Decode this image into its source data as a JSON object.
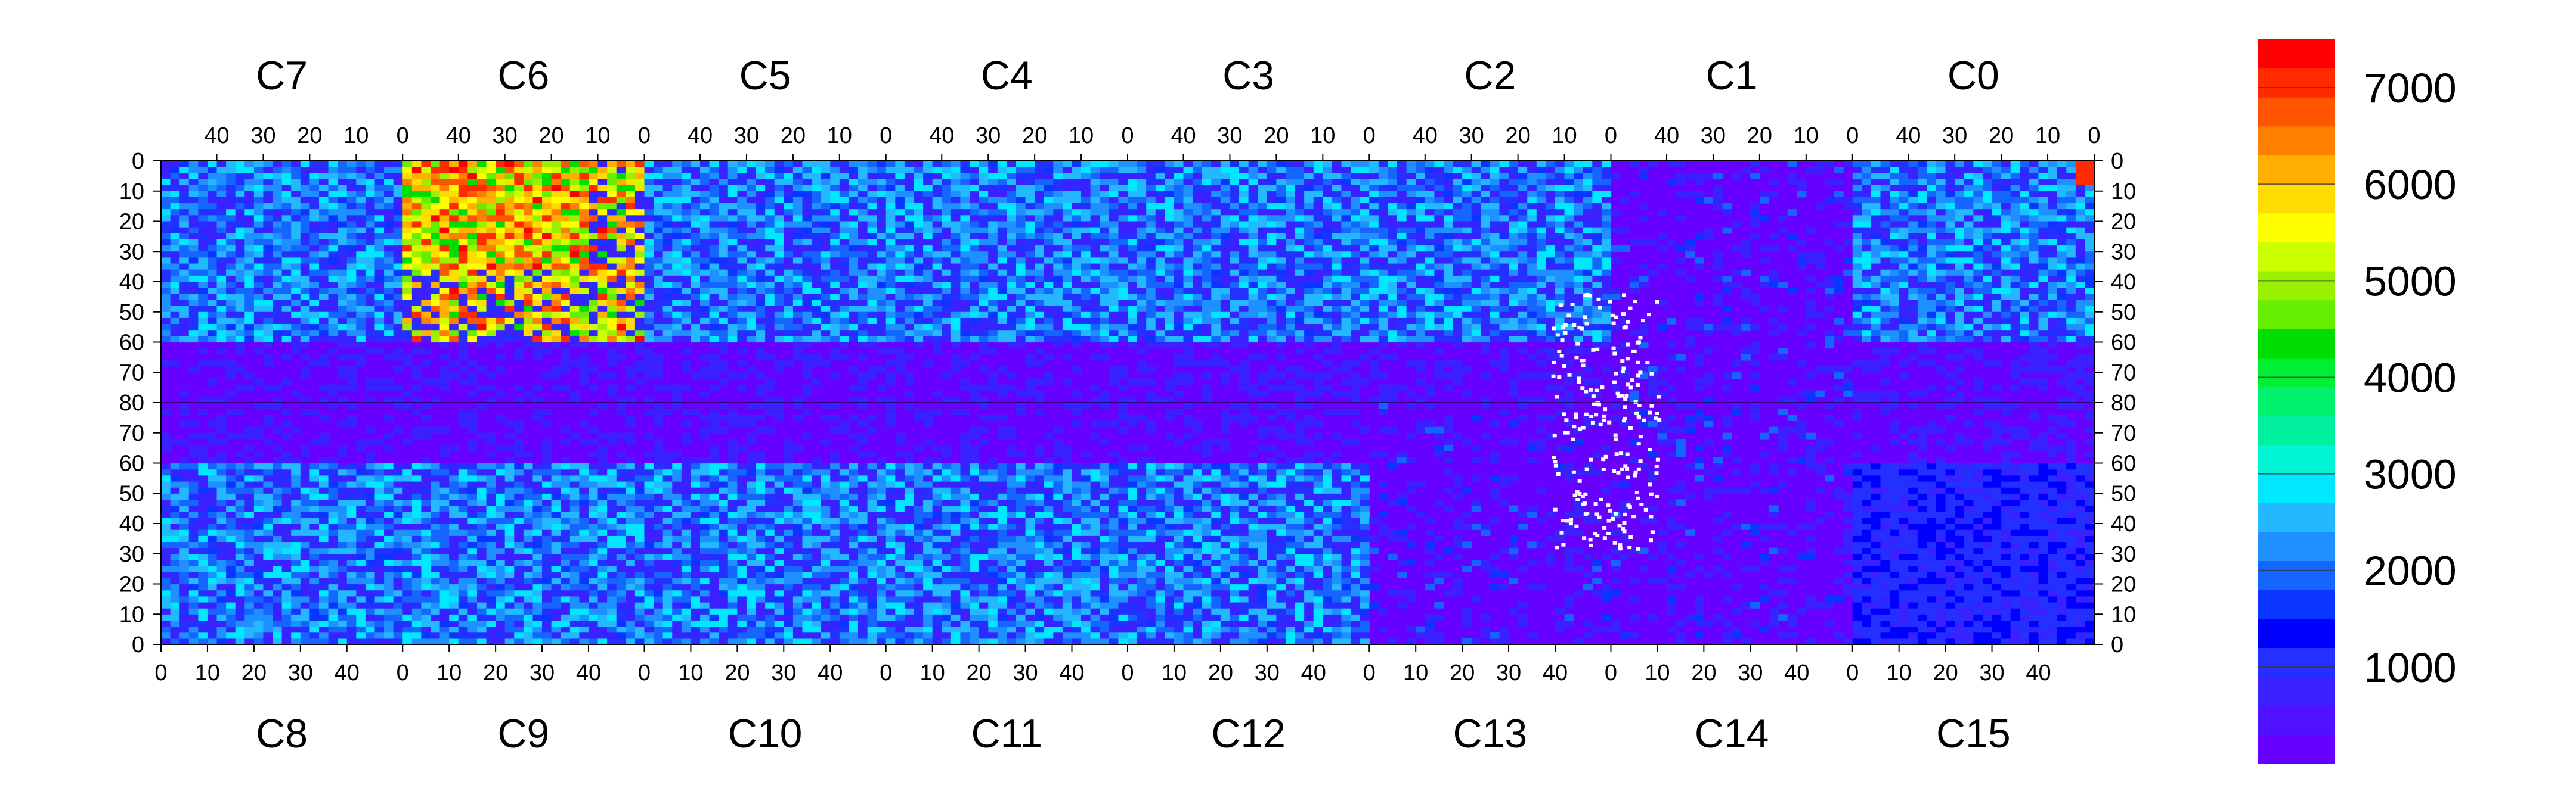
{
  "chart_data": {
    "type": "heatmap",
    "title": "",
    "xlabel": "",
    "ylabel": "",
    "top_chips": [
      "C7",
      "C6",
      "C5",
      "C4",
      "C3",
      "C2",
      "C1",
      "C0"
    ],
    "bottom_chips": [
      "C8",
      "C9",
      "C10",
      "C11",
      "C12",
      "C13",
      "C14",
      "C15"
    ],
    "chip_columns": 52,
    "chip_rows": 80,
    "top_x_ticks": [
      40,
      30,
      20,
      10,
      0
    ],
    "bottom_x_ticks": [
      0,
      10,
      20,
      30,
      40
    ],
    "top_y_ticks": [
      0,
      10,
      20,
      30,
      40,
      50,
      60,
      70,
      80
    ],
    "bottom_y_ticks": [
      80,
      70,
      60,
      50,
      40,
      30,
      20,
      10,
      0
    ],
    "zlim": [
      0,
      7500
    ],
    "colorbar_ticks": [
      1000,
      2000,
      3000,
      4000,
      5000,
      6000,
      7000
    ],
    "colorbar_colors": [
      "#6600ff",
      "#4f11ff",
      "#3a21ff",
      "#2430ff",
      "#0000ff",
      "#0a34ff",
      "#1466ff",
      "#1e90ff",
      "#23b8ff",
      "#00e8ff",
      "#00f5d4",
      "#00f0a0",
      "#00f26c",
      "#00ee33",
      "#00dd00",
      "#66ee00",
      "#99f000",
      "#ccff00",
      "#ffff00",
      "#ffdd00",
      "#ffb000",
      "#ff8000",
      "#ff5500",
      "#ff2a00",
      "#ff0000"
    ],
    "chip_levels": {
      "C7": {
        "top_region": 2000,
        "edge_column": 3000
      },
      "C6": {
        "top_region": 5000,
        "hot_corner": 7000
      },
      "C5": {
        "top_region": 2000
      },
      "C4": {
        "top_region": 2000
      },
      "C3": {
        "top_region": 2000
      },
      "C2": {
        "top_region": 2000
      },
      "C1": {
        "top_region": 500
      },
      "C0": {
        "top_region": 2000,
        "hot_corner": 7000
      },
      "C8": {
        "top_region": 2000
      },
      "C9": {
        "top_region": 2000
      },
      "C10": {
        "top_region": 2000
      },
      "C11": {
        "top_region": 2000
      },
      "C12": {
        "top_region": 2000
      },
      "C13": {
        "top_region": 500
      },
      "C14": {
        "top_region": 500
      },
      "C15": {
        "top_region": 1000
      }
    },
    "grid": false,
    "legend": "right colorbar"
  }
}
